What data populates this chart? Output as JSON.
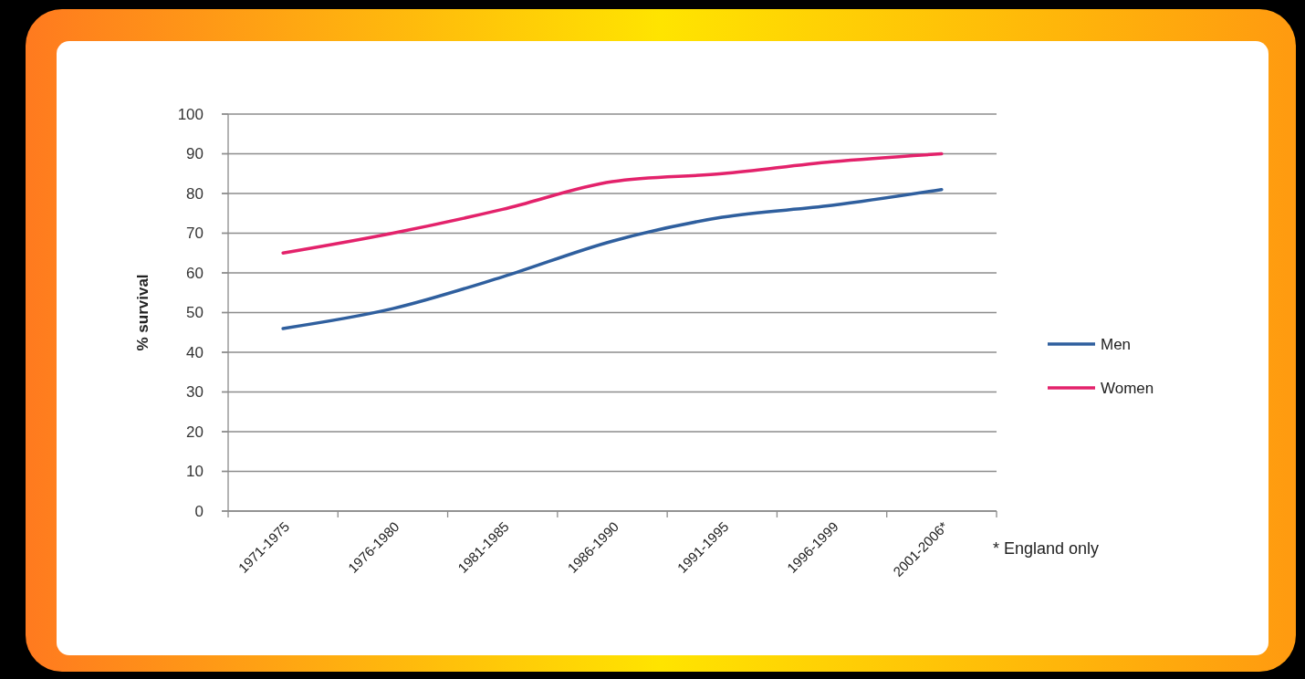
{
  "chart_data": {
    "type": "line",
    "categories": [
      "1971-1975",
      "1976-1980",
      "1981-1985",
      "1986-1990",
      "1991-1995",
      "1996-1999",
      "2001-2006*"
    ],
    "series": [
      {
        "name": "Men",
        "color": "#2f5f9e",
        "values": [
          46,
          51,
          59,
          68,
          74,
          77,
          81
        ]
      },
      {
        "name": "Women",
        "color": "#e3226b",
        "values": [
          65,
          70,
          76,
          83,
          85,
          88,
          90
        ]
      }
    ],
    "ylabel": "% survival",
    "ylim": [
      0,
      100
    ],
    "yticks": [
      0,
      10,
      20,
      30,
      40,
      50,
      60,
      70,
      80,
      90,
      100
    ],
    "grid": "y",
    "legend": "right",
    "line_style": "solid",
    "annotations": [
      "* England only"
    ]
  }
}
